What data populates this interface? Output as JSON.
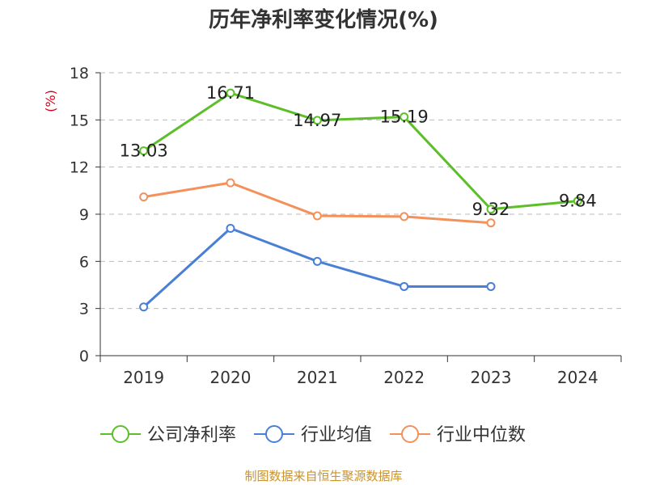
{
  "title": "历年净利率变化情况(%)",
  "source": "制图数据来自恒生聚源数据库",
  "colors": {
    "axis": "#333333",
    "grid": "#bbbbbb",
    "unit": "#d9001b",
    "text": "#333333"
  },
  "chart_data": {
    "type": "line",
    "title": "历年净利率变化情况(%)",
    "ylabel": "(%)",
    "categories": [
      "2019",
      "2020",
      "2021",
      "2022",
      "2023",
      "2024"
    ],
    "ylim": [
      0,
      18
    ],
    "yticks": [
      0,
      3,
      6,
      9,
      12,
      15,
      18
    ],
    "grid": true,
    "legend": "bottom",
    "series": [
      {
        "name": "公司净利率",
        "color": "#5cbf2a",
        "values": [
          13.03,
          16.71,
          14.97,
          15.19,
          9.32,
          9.84
        ],
        "labels": [
          "13.03",
          "16.71",
          "14.97",
          "15.19",
          "9.32",
          "9.84"
        ]
      },
      {
        "name": "行业均值",
        "color": "#4a7fd6",
        "values": [
          3.1,
          8.1,
          6.0,
          4.4,
          4.4,
          null
        ]
      },
      {
        "name": "行业中位数",
        "color": "#f4905a",
        "values": [
          10.1,
          11.0,
          8.9,
          8.85,
          8.45,
          null
        ]
      }
    ]
  }
}
